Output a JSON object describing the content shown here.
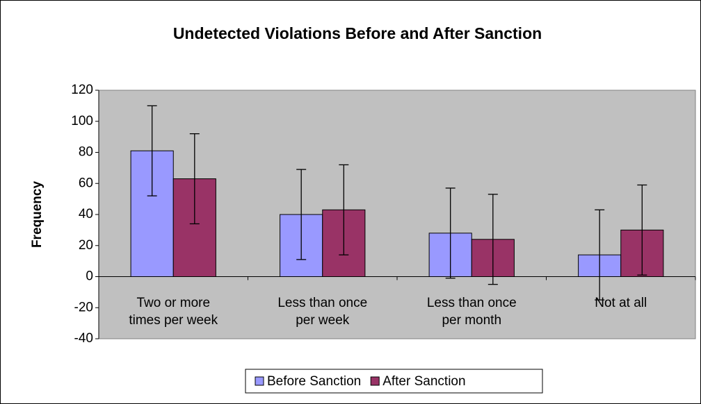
{
  "chart_data": {
    "type": "bar",
    "title": "Undetected Violations Before and After Sanction",
    "y_label": "Frequency",
    "categories": [
      "Two or more times per week",
      "Less than once per week",
      "Less than once per month",
      "Not at all"
    ],
    "series": [
      {
        "name": "Before Sanction",
        "color": "#9999ff",
        "values": [
          81,
          40,
          28,
          14
        ],
        "errors": [
          29,
          29,
          29,
          29
        ]
      },
      {
        "name": "After Sanction",
        "color": "#993366",
        "values": [
          63,
          43,
          24,
          30
        ],
        "errors": [
          29,
          29,
          29,
          29
        ]
      }
    ],
    "ylim": [
      -40,
      120
    ],
    "yticks": [
      -40,
      -20,
      0,
      20,
      40,
      60,
      80,
      100,
      120
    ],
    "grid": false,
    "legend": "bottom",
    "plot_background": "#c0c0c0"
  }
}
